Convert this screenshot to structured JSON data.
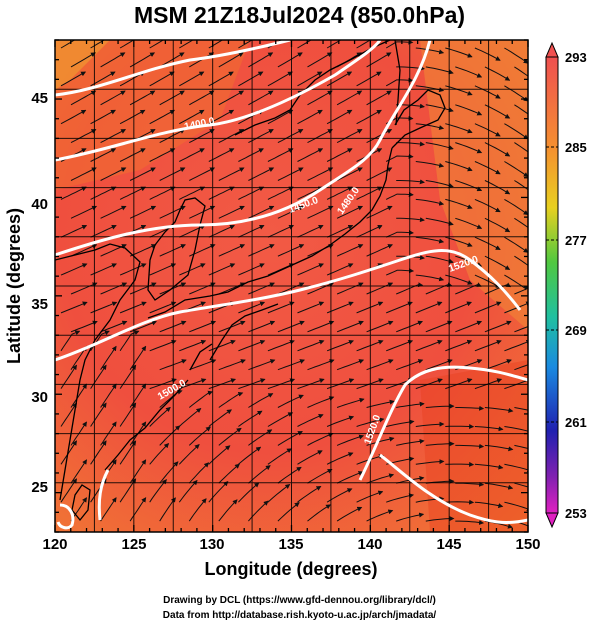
{
  "header": {
    "title": "MSM 21Z18Jul2024 (850.0hPa)"
  },
  "map": {
    "extent": {
      "lon": [
        120,
        150
      ],
      "lat": [
        22.4,
        47.6
      ]
    },
    "lon_ticks": [
      "120",
      "125",
      "130",
      "135",
      "140",
      "145",
      "150"
    ],
    "lat_ticks": [
      "25",
      "30",
      "35",
      "40",
      "45"
    ],
    "xlabel": "Longitude (degrees)",
    "ylabel": "Latitude  (degrees)",
    "contours": [
      {
        "label": "1400.0"
      },
      {
        "label": "1450.0"
      },
      {
        "label": "1480.0"
      },
      {
        "label": "1520.0"
      },
      {
        "label": "1500.0"
      },
      {
        "label": "1520.0"
      }
    ]
  },
  "colorbar": {
    "ticks": [
      "293",
      "285",
      "277",
      "269",
      "261",
      "253"
    ],
    "colors": [
      "#f0505a",
      "#f57a3c",
      "#f0c030",
      "#7ad020",
      "#20c080",
      "#1a70e0",
      "#2020b0",
      "#c020c0"
    ]
  },
  "footer": {
    "credit_line1": "Drawing by DCL (https://www.gfd-dennou.org/library/dcl/)",
    "credit_line2": "Data from http://database.rish.kyoto-u.ac.jp/arch/jmadata/"
  }
}
